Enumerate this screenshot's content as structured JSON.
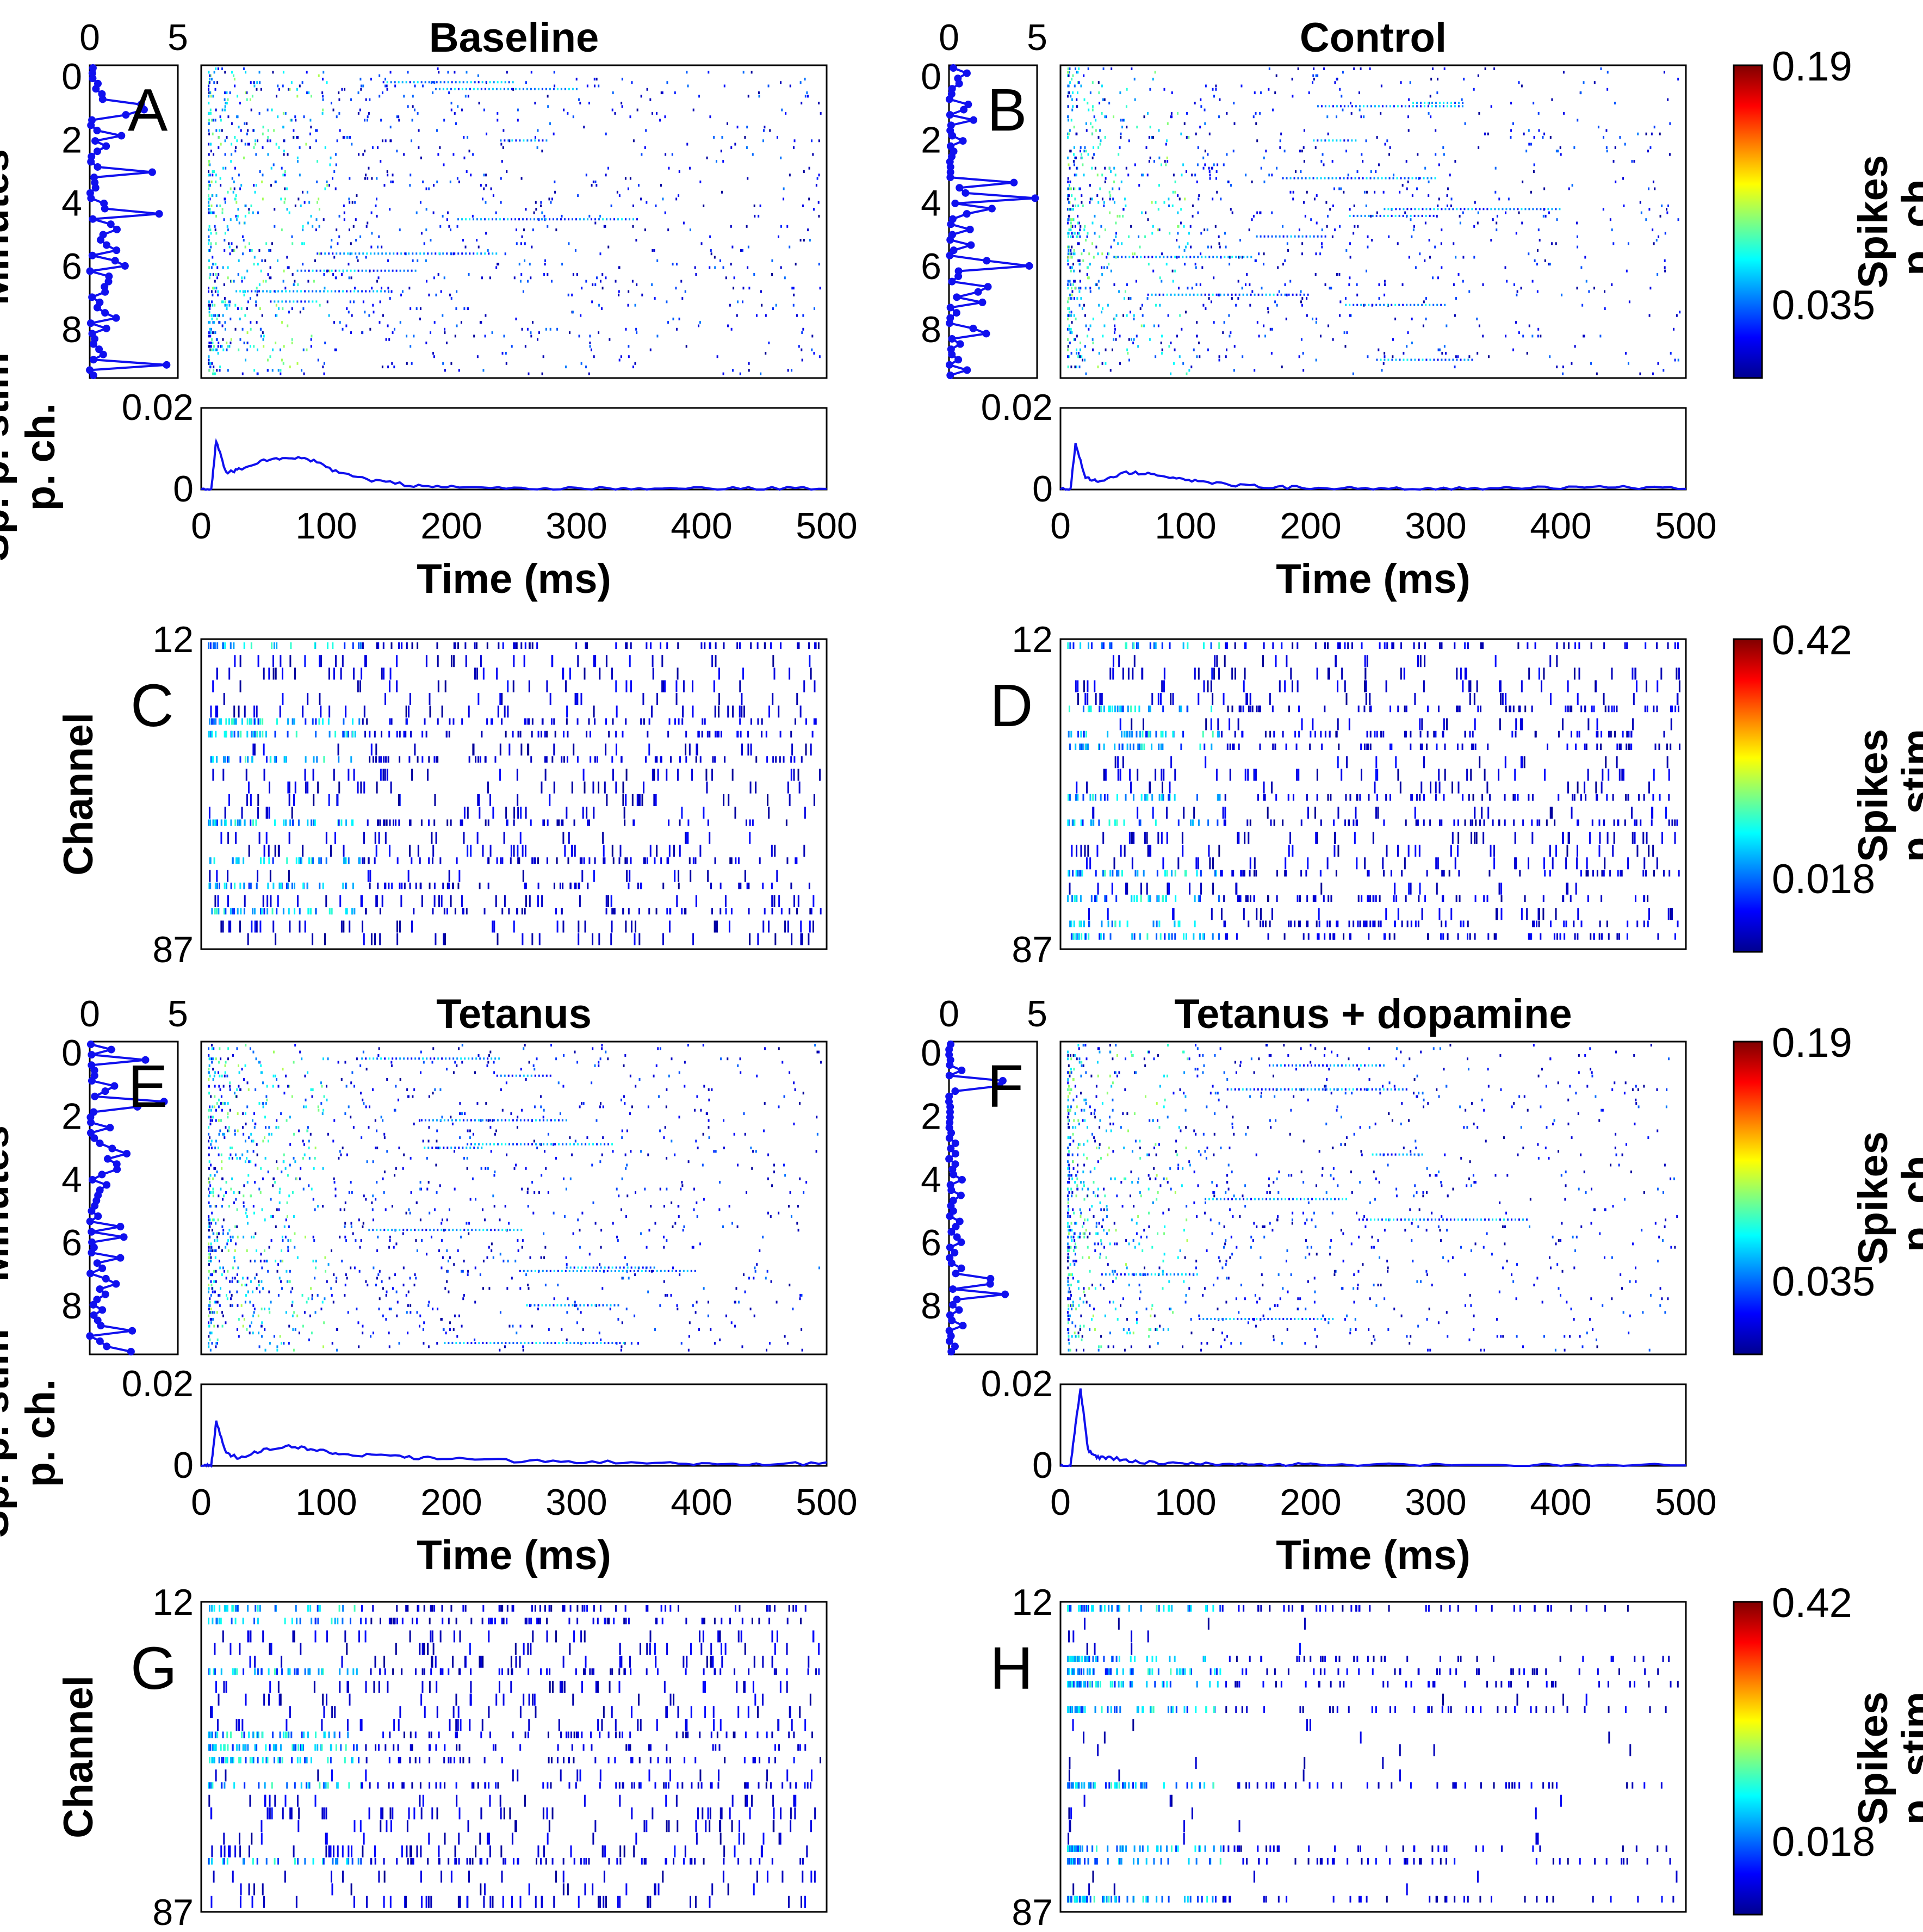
{
  "figure": {
    "raster_cmap_stops": [
      "#00008f",
      "#0000ff",
      "#00ffff",
      "#ffff00",
      "#ff0000",
      "#800000"
    ]
  },
  "panels": [
    {
      "letter": "A",
      "title": "Baseline",
      "ylabel": "Minutes",
      "lower_ylabel": "Sp. p. stim p. ch.",
      "xlabel": "Time (ms)",
      "seed": 11,
      "side_ticks": [
        "0",
        "5"
      ],
      "y_ticks": [
        "0",
        "2",
        "4",
        "6",
        "8"
      ],
      "lower_y_ticks": [
        "0.02",
        "0"
      ],
      "x_ticks": [
        "0",
        "100",
        "200",
        "300",
        "400",
        "500"
      ]
    },
    {
      "letter": "B",
      "title": "Control",
      "ylabel": "",
      "lower_ylabel": "",
      "xlabel": "Time (ms)",
      "seed": 23,
      "side_ticks": [
        "0",
        "5"
      ],
      "y_ticks": [
        "0",
        "2",
        "4",
        "6",
        "8"
      ],
      "lower_y_ticks": [
        "0.02",
        "0"
      ],
      "x_ticks": [
        "0",
        "100",
        "200",
        "300",
        "400",
        "500"
      ]
    },
    {
      "letter": "C",
      "ylabel": "Channel",
      "y_ticks": [
        "12",
        "87"
      ],
      "seed": 37
    },
    {
      "letter": "D",
      "ylabel": "",
      "y_ticks": [
        "12",
        "87"
      ],
      "seed": 41
    },
    {
      "letter": "E",
      "title": "Tetanus",
      "ylabel": "Minutes",
      "lower_ylabel": "Sp. p. stim p. ch.",
      "xlabel": "Time (ms)",
      "seed": 53,
      "side_ticks": [
        "0",
        "5"
      ],
      "y_ticks": [
        "0",
        "2",
        "4",
        "6",
        "8"
      ],
      "lower_y_ticks": [
        "0.02",
        "0"
      ],
      "x_ticks": [
        "0",
        "100",
        "200",
        "300",
        "400",
        "500"
      ]
    },
    {
      "letter": "F",
      "title": "Tetanus + dopamine",
      "ylabel": "",
      "lower_ylabel": "",
      "xlabel": "Time (ms)",
      "seed": 67,
      "side_ticks": [
        "0",
        "5"
      ],
      "y_ticks": [
        "0",
        "2",
        "4",
        "6",
        "8"
      ],
      "lower_y_ticks": [
        "0.02",
        "0"
      ],
      "x_ticks": [
        "0",
        "100",
        "200",
        "300",
        "400",
        "500"
      ]
    },
    {
      "letter": "G",
      "ylabel": "Channel",
      "y_ticks": [
        "12",
        "87"
      ],
      "seed": 71
    },
    {
      "letter": "H",
      "ylabel": "",
      "y_ticks": [
        "12",
        "87"
      ],
      "seed": 83
    }
  ],
  "colorbars": [
    {
      "label": "Spikes p. ch.",
      "max": "0.19",
      "mid": "0.035"
    },
    {
      "label": "Spikes p. stim",
      "max": "0.42",
      "mid": "0.018"
    },
    {
      "label": "Spikes p. ch.",
      "max": "0.19",
      "mid": "0.035"
    },
    {
      "label": "Spikes p. stim",
      "max": "0.42",
      "mid": "0.018"
    }
  ],
  "chart_data": [
    {
      "type": "line",
      "panel": "A",
      "xlabel": "Time (ms)",
      "ylabel": "Sp. p. stim p. ch.",
      "xlim": [
        0,
        500
      ],
      "ylim": [
        0,
        0.02
      ],
      "series": [
        {
          "x": [
            0,
            8,
            12,
            20,
            30,
            50,
            70,
            90,
            110,
            140,
            170,
            200,
            250,
            300,
            350,
            400,
            450,
            500
          ],
          "values": [
            0,
            0,
            0.012,
            0.004,
            0.005,
            0.007,
            0.008,
            0.007,
            0.004,
            0.002,
            0.001,
            0.0006,
            0.0004,
            0.0003,
            0.0003,
            0.0003,
            0.0003,
            0.0003
          ]
        }
      ]
    },
    {
      "type": "line",
      "panel": "B",
      "xlabel": "Time (ms)",
      "ylabel": "Sp. p. stim p. ch.",
      "xlim": [
        0,
        500
      ],
      "ylim": [
        0,
        0.02
      ],
      "series": [
        {
          "x": [
            0,
            8,
            12,
            20,
            30,
            50,
            70,
            90,
            110,
            140,
            170,
            200,
            250,
            300,
            350,
            400,
            450,
            500
          ],
          "values": [
            0,
            0,
            0.011,
            0.003,
            0.002,
            0.004,
            0.004,
            0.003,
            0.002,
            0.001,
            0.0006,
            0.0004,
            0.0003,
            0.0003,
            0.0003,
            0.0004,
            0.0005,
            0.0003
          ]
        }
      ]
    },
    {
      "type": "line",
      "panel": "E",
      "xlabel": "Time (ms)",
      "ylabel": "Sp. p. stim p. ch.",
      "xlim": [
        0,
        500
      ],
      "ylim": [
        0,
        0.02
      ],
      "series": [
        {
          "x": [
            0,
            8,
            12,
            20,
            30,
            50,
            70,
            90,
            110,
            140,
            170,
            200,
            250,
            300,
            350,
            400,
            450,
            500
          ],
          "values": [
            0,
            0,
            0.011,
            0.003,
            0.002,
            0.004,
            0.005,
            0.004,
            0.003,
            0.0025,
            0.002,
            0.0018,
            0.0012,
            0.001,
            0.0008,
            0.0006,
            0.0005,
            0.0005
          ]
        }
      ]
    },
    {
      "type": "line",
      "panel": "F",
      "xlabel": "Time (ms)",
      "ylabel": "Sp. p. stim p. ch.",
      "xlim": [
        0,
        500
      ],
      "ylim": [
        0,
        0.02
      ],
      "series": [
        {
          "x": [
            0,
            8,
            12,
            16,
            22,
            30,
            40,
            60,
            90,
            120,
            160,
            200,
            300,
            400,
            500
          ],
          "values": [
            0,
            0,
            0.01,
            0.019,
            0.004,
            0.002,
            0.002,
            0.001,
            0.0006,
            0.0004,
            0.0003,
            0.0003,
            0.0002,
            0.0002,
            0.0002
          ]
        }
      ]
    }
  ]
}
